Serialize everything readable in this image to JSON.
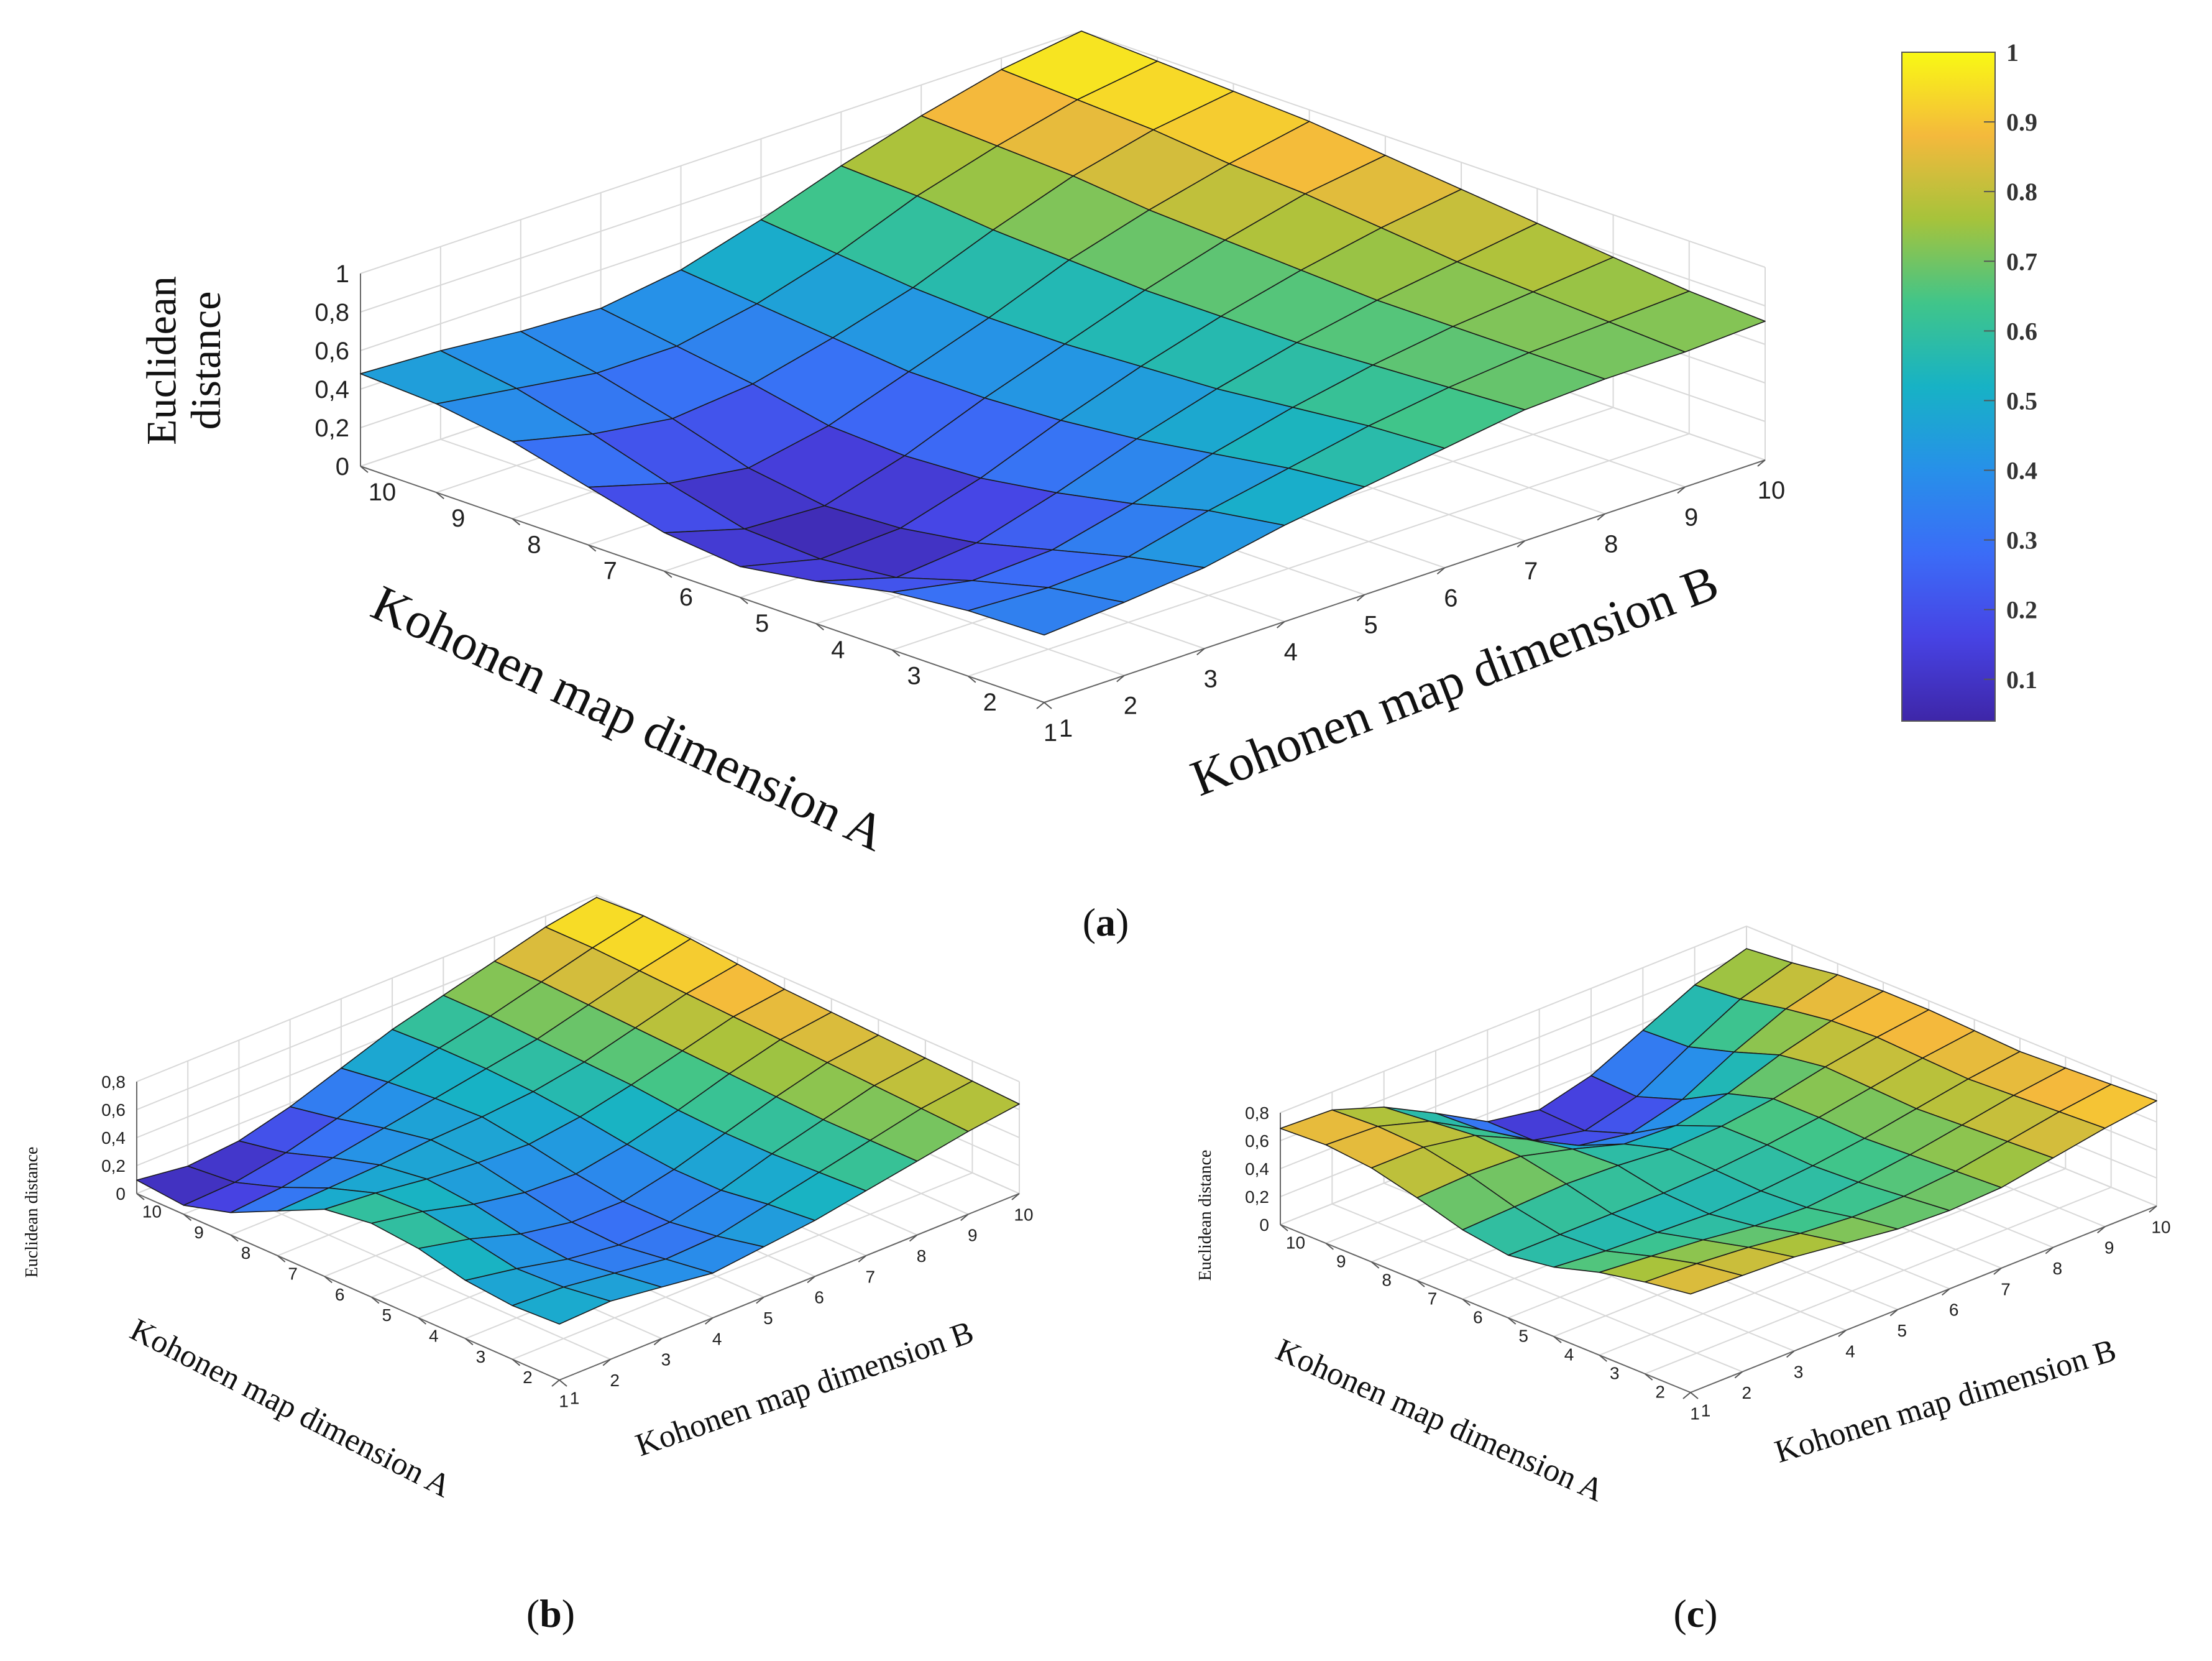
{
  "figure": {
    "captions": [
      "(a)",
      "(b)",
      "(c)"
    ]
  },
  "colorbar": {
    "min": 0.04,
    "max": 1.0,
    "ticks": [
      "0.1",
      "0.2",
      "0.3",
      "0.4",
      "0.5",
      "0.6",
      "0.7",
      "0.8",
      "0.9",
      "1"
    ]
  },
  "chart_data": [
    {
      "id": "a",
      "type": "surface",
      "title": "",
      "caption_letter": "a",
      "xlabel": "Kohonen map dimension A",
      "ylabel": "Kohonen map dimension B",
      "zlabel": "Euclidean distance",
      "x_ticks": [
        "1",
        "2",
        "3",
        "4",
        "5",
        "6",
        "7",
        "8",
        "9",
        "10"
      ],
      "y_ticks": [
        "1",
        "2",
        "3",
        "4",
        "5",
        "6",
        "7",
        "8",
        "9",
        "10"
      ],
      "z_ticks": [
        "0",
        "0,2",
        "0,4",
        "0,6",
        "0,8",
        "1"
      ],
      "zlim": [
        0,
        1
      ],
      "colorbar_ticks": [
        "0.1",
        "0.2",
        "0.3",
        "0.4",
        "0.5",
        "0.6",
        "0.7",
        "0.8",
        "0.9",
        "1"
      ],
      "z": [
        [
          0.35,
          0.38,
          0.42,
          0.5,
          0.56,
          0.62,
          0.68,
          0.7,
          0.7,
          0.72
        ],
        [
          0.34,
          0.32,
          0.34,
          0.44,
          0.52,
          0.6,
          0.66,
          0.7,
          0.72,
          0.74
        ],
        [
          0.3,
          0.22,
          0.24,
          0.34,
          0.46,
          0.56,
          0.64,
          0.7,
          0.74,
          0.78
        ],
        [
          0.22,
          0.1,
          0.14,
          0.26,
          0.4,
          0.52,
          0.62,
          0.7,
          0.76,
          0.82
        ],
        [
          0.16,
          0.06,
          0.08,
          0.2,
          0.36,
          0.5,
          0.62,
          0.72,
          0.8,
          0.86
        ],
        [
          0.2,
          0.08,
          0.06,
          0.18,
          0.34,
          0.48,
          0.62,
          0.74,
          0.84,
          0.9
        ],
        [
          0.3,
          0.18,
          0.12,
          0.2,
          0.34,
          0.48,
          0.64,
          0.76,
          0.86,
          0.94
        ],
        [
          0.4,
          0.3,
          0.24,
          0.28,
          0.38,
          0.5,
          0.66,
          0.8,
          0.9,
          0.96
        ],
        [
          0.46,
          0.4,
          0.34,
          0.34,
          0.42,
          0.54,
          0.7,
          0.82,
          0.92,
          0.98
        ],
        [
          0.48,
          0.46,
          0.42,
          0.4,
          0.46,
          0.58,
          0.72,
          0.84,
          0.94,
          1.0
        ]
      ]
    },
    {
      "id": "b",
      "type": "surface",
      "title": "",
      "caption_letter": "b",
      "xlabel": "Kohonen map dimension A",
      "ylabel": "Kohonen map dimension B",
      "zlabel": "Euclidean distance",
      "x_ticks": [
        "1",
        "2",
        "3",
        "4",
        "5",
        "6",
        "7",
        "8",
        "9",
        "10"
      ],
      "y_ticks": [
        "1",
        "2",
        "3",
        "4",
        "5",
        "6",
        "7",
        "8",
        "9",
        "10"
      ],
      "z_ticks": [
        "0",
        "0,2",
        "0,4",
        "0,6",
        "0,8"
      ],
      "zlim": [
        0,
        0.8
      ],
      "z": [
        [
          0.5,
          0.52,
          0.46,
          0.4,
          0.45,
          0.5,
          0.58,
          0.66,
          0.74,
          0.8
        ],
        [
          0.48,
          0.46,
          0.4,
          0.34,
          0.36,
          0.46,
          0.56,
          0.66,
          0.76,
          0.82
        ],
        [
          0.52,
          0.44,
          0.34,
          0.28,
          0.3,
          0.4,
          0.54,
          0.66,
          0.78,
          0.84
        ],
        [
          0.62,
          0.52,
          0.38,
          0.3,
          0.3,
          0.4,
          0.54,
          0.68,
          0.8,
          0.86
        ],
        [
          0.66,
          0.58,
          0.46,
          0.38,
          0.36,
          0.44,
          0.56,
          0.7,
          0.82,
          0.88
        ],
        [
          0.6,
          0.56,
          0.5,
          0.46,
          0.44,
          0.5,
          0.6,
          0.72,
          0.84,
          0.9
        ],
        [
          0.4,
          0.42,
          0.44,
          0.48,
          0.5,
          0.54,
          0.62,
          0.74,
          0.86,
          0.94
        ],
        [
          0.2,
          0.24,
          0.32,
          0.4,
          0.48,
          0.56,
          0.64,
          0.76,
          0.88,
          0.98
        ],
        [
          0.08,
          0.1,
          0.18,
          0.3,
          0.44,
          0.56,
          0.66,
          0.78,
          0.9,
          1.0
        ],
        [
          0.12,
          0.06,
          0.1,
          0.22,
          0.38,
          0.54,
          0.66,
          0.78,
          0.9,
          0.98
        ]
      ]
    },
    {
      "id": "c",
      "type": "surface",
      "title": "",
      "caption_letter": "c",
      "xlabel": "Kohonen map dimension A",
      "ylabel": "Kohonen map dimension B",
      "zlabel": "Euclidean distance",
      "x_ticks": [
        "1",
        "2",
        "3",
        "4",
        "5",
        "6",
        "7",
        "8",
        "9",
        "10"
      ],
      "y_ticks": [
        "1",
        "2",
        "3",
        "4",
        "5",
        "6",
        "7",
        "8",
        "9",
        "10"
      ],
      "z_ticks": [
        "0",
        "0,2",
        "0,4",
        "0,6",
        "0,8"
      ],
      "zlim": [
        0,
        0.8
      ],
      "z": [
        [
          0.88,
          0.86,
          0.84,
          0.78,
          0.72,
          0.7,
          0.72,
          0.8,
          0.88,
          0.94
        ],
        [
          0.82,
          0.8,
          0.76,
          0.7,
          0.66,
          0.66,
          0.7,
          0.78,
          0.86,
          0.92
        ],
        [
          0.74,
          0.7,
          0.66,
          0.6,
          0.58,
          0.62,
          0.68,
          0.76,
          0.84,
          0.9
        ],
        [
          0.62,
          0.58,
          0.56,
          0.54,
          0.56,
          0.6,
          0.66,
          0.74,
          0.82,
          0.88
        ],
        [
          0.56,
          0.56,
          0.56,
          0.56,
          0.58,
          0.62,
          0.68,
          0.76,
          0.84,
          0.9
        ],
        [
          0.62,
          0.64,
          0.66,
          0.64,
          0.6,
          0.62,
          0.68,
          0.78,
          0.86,
          0.92
        ],
        [
          0.74,
          0.76,
          0.74,
          0.62,
          0.48,
          0.46,
          0.56,
          0.72,
          0.84,
          0.92
        ],
        [
          0.84,
          0.84,
          0.76,
          0.54,
          0.3,
          0.22,
          0.34,
          0.58,
          0.78,
          0.9
        ],
        [
          0.88,
          0.86,
          0.72,
          0.46,
          0.18,
          0.08,
          0.2,
          0.46,
          0.7,
          0.84
        ],
        [
          0.86,
          0.84,
          0.68,
          0.44,
          0.18,
          0.1,
          0.22,
          0.44,
          0.66,
          0.8
        ]
      ]
    }
  ]
}
